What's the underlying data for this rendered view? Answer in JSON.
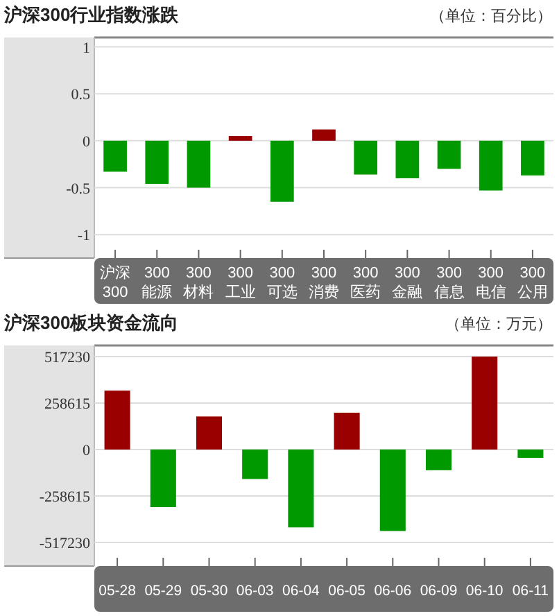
{
  "chart_data": [
    {
      "type": "bar",
      "title": "沪深300行业指数涨跌",
      "subtitle": "（单位：百分比）",
      "categories": [
        "沪深300",
        "300能源",
        "300材料",
        "300工业",
        "300可选",
        "300消费",
        "300医药",
        "300金融",
        "300信息",
        "300电信",
        "300公用"
      ],
      "values": [
        -0.33,
        -0.46,
        -0.5,
        0.05,
        -0.65,
        0.12,
        -0.36,
        -0.4,
        -0.3,
        -0.53,
        -0.37
      ],
      "colors": [
        "#009900",
        "#009900",
        "#009900",
        "#990000",
        "#009900",
        "#990000",
        "#009900",
        "#009900",
        "#009900",
        "#009900",
        "#009900"
      ],
      "ylim": [
        -1.25,
        1.1
      ],
      "yticks": [
        -1,
        -0.5,
        0,
        0.5,
        1
      ],
      "grid": "y"
    },
    {
      "type": "bar",
      "title": "沪深300板块资金流向",
      "subtitle": "（单位：万元）",
      "categories": [
        "05-28",
        "05-29",
        "05-30",
        "06-03",
        "06-04",
        "06-05",
        "06-06",
        "06-09",
        "06-10",
        "06-11"
      ],
      "values": [
        328000,
        -320000,
        184000,
        -164000,
        -433000,
        205000,
        -453000,
        -115000,
        517000,
        -46000
      ],
      "colors": [
        "#990000",
        "#009900",
        "#990000",
        "#009900",
        "#009900",
        "#990000",
        "#009900",
        "#009900",
        "#990000",
        "#009900"
      ],
      "ylim": [
        -648000,
        579000
      ],
      "yticks": [
        -517230,
        -258615,
        0,
        258615,
        517230
      ],
      "grid": "y"
    }
  ]
}
